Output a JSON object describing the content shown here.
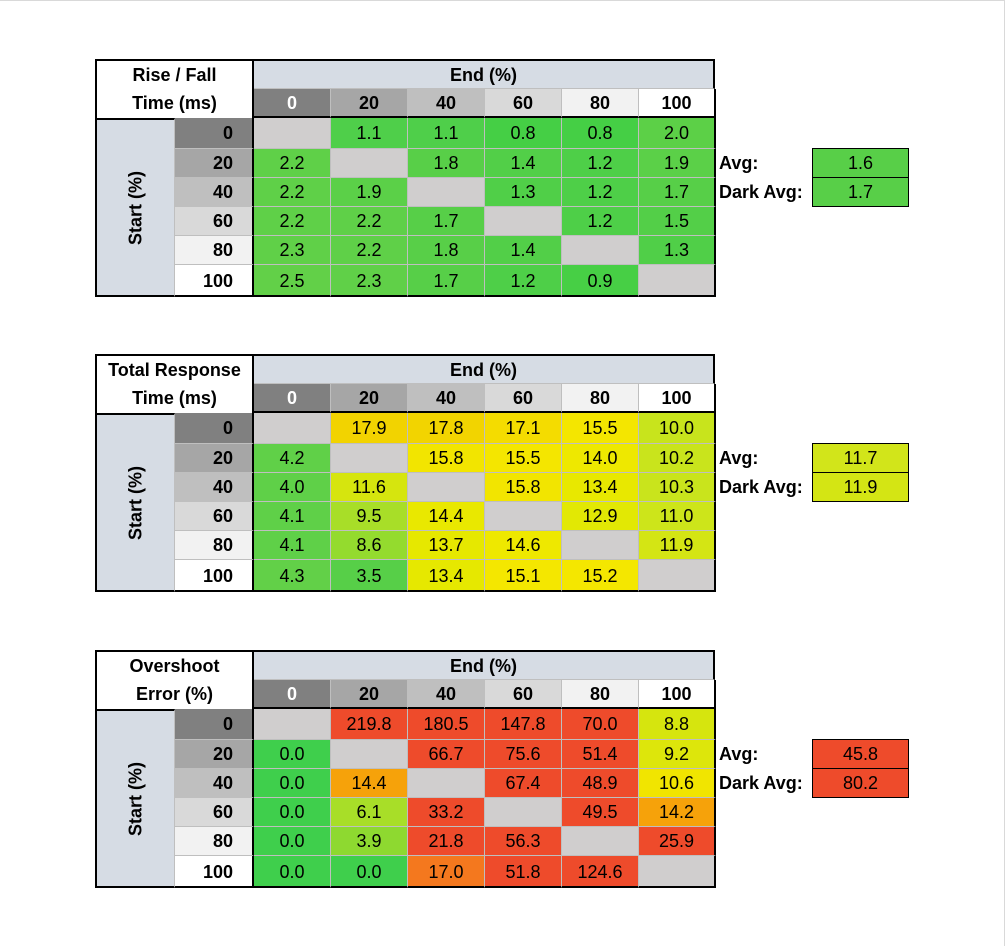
{
  "colors": {
    "header_band": "#d6dce4",
    "gray_cell": "#d0cece",
    "col_header_bg": [
      "#808080",
      "#a6a6a6",
      "#bfbfbf",
      "#d9d9d9",
      "#f2f2f2",
      "#ffffff"
    ],
    "row_header_bg": [
      "#808080",
      "#a6a6a6",
      "#bfbfbf",
      "#d9d9d9",
      "#f2f2f2",
      "#ffffff"
    ]
  },
  "chart_data": [
    {
      "type": "heatmap",
      "title_line1": "Rise / Fall",
      "title_line2": "Time (ms)",
      "xlabel": "End (%)",
      "ylabel": "Start (%)",
      "x_categories": [
        "0",
        "20",
        "40",
        "60",
        "80",
        "100"
      ],
      "y_categories": [
        "0",
        "20",
        "40",
        "60",
        "80",
        "100"
      ],
      "values": [
        [
          "",
          "1.1",
          "1.1",
          "0.8",
          "0.8",
          "2.0"
        ],
        [
          "2.2",
          "",
          "1.8",
          "1.4",
          "1.2",
          "1.9"
        ],
        [
          "2.2",
          "1.9",
          "",
          "1.3",
          "1.2",
          "1.7"
        ],
        [
          "2.2",
          "2.2",
          "1.7",
          "",
          "1.2",
          "1.5"
        ],
        [
          "2.3",
          "2.2",
          "1.8",
          "1.4",
          "",
          "1.3"
        ],
        [
          "2.5",
          "2.3",
          "1.7",
          "1.2",
          "0.9",
          ""
        ]
      ],
      "colors": [
        [
          "#d0cece",
          "#4fcf4a",
          "#4fcf4a",
          "#45cf45",
          "#45cf45",
          "#5cd047"
        ],
        [
          "#5fd048",
          "#d0cece",
          "#58cf48",
          "#52cf48",
          "#4ecf48",
          "#5bd048"
        ],
        [
          "#5fd048",
          "#5bd048",
          "#d0cece",
          "#50cf48",
          "#4ecf48",
          "#57cf48"
        ],
        [
          "#5fd048",
          "#5fd048",
          "#57cf48",
          "#d0cece",
          "#4ecf48",
          "#53cf48"
        ],
        [
          "#60d048",
          "#5fd048",
          "#58cf48",
          "#52cf48",
          "#d0cece",
          "#50cf48"
        ],
        [
          "#62d048",
          "#60d048",
          "#57cf48",
          "#4ecf48",
          "#47cf45",
          "#d0cece"
        ]
      ],
      "avg_label": "Avg:",
      "avg_value": "1.6",
      "avg_color": "#58cf48",
      "dark_avg_label": "Dark Avg:",
      "dark_avg_value": "1.7",
      "dark_avg_color": "#58cf48"
    },
    {
      "type": "heatmap",
      "title_line1": "Total Response",
      "title_line2": "Time (ms)",
      "xlabel": "End (%)",
      "ylabel": "Start (%)",
      "x_categories": [
        "0",
        "20",
        "40",
        "60",
        "80",
        "100"
      ],
      "y_categories": [
        "0",
        "20",
        "40",
        "60",
        "80",
        "100"
      ],
      "values": [
        [
          "",
          "17.9",
          "17.8",
          "17.1",
          "15.5",
          "10.0"
        ],
        [
          "4.2",
          "",
          "15.8",
          "15.5",
          "14.0",
          "10.2"
        ],
        [
          "4.0",
          "11.6",
          "",
          "15.8",
          "13.4",
          "10.3"
        ],
        [
          "4.1",
          "9.5",
          "14.4",
          "",
          "12.9",
          "11.0"
        ],
        [
          "4.1",
          "8.6",
          "13.7",
          "14.6",
          "",
          "11.9"
        ],
        [
          "4.3",
          "3.5",
          "13.4",
          "15.1",
          "15.2",
          ""
        ]
      ],
      "colors": [
        [
          "#d0cece",
          "#f2d300",
          "#f2d400",
          "#f4dc00",
          "#f4e600",
          "#c8e41c"
        ],
        [
          "#60d048",
          "#d0cece",
          "#f2e500",
          "#f4e600",
          "#eee800",
          "#c9e41c"
        ],
        [
          "#5fd048",
          "#d6e50e",
          "#d0cece",
          "#f2e500",
          "#e8e800",
          "#c9e41c"
        ],
        [
          "#5fd048",
          "#a8de28",
          "#e9e800",
          "#d0cece",
          "#e2e804",
          "#cde51a"
        ],
        [
          "#5fd048",
          "#94db2e",
          "#e6e800",
          "#eee800",
          "#d0cece",
          "#d4e514"
        ],
        [
          "#62d048",
          "#57cf48",
          "#e6e800",
          "#f4e700",
          "#f4e700",
          "#d0cece"
        ]
      ],
      "avg_label": "Avg:",
      "avg_value": "11.7",
      "avg_color": "#d2e51a",
      "dark_avg_label": "Dark Avg:",
      "dark_avg_value": "11.9",
      "dark_avg_color": "#d4e514"
    },
    {
      "type": "heatmap",
      "title_line1": "Overshoot",
      "title_line2": "Error (%)",
      "xlabel": "End (%)",
      "ylabel": "Start (%)",
      "x_categories": [
        "0",
        "20",
        "40",
        "60",
        "80",
        "100"
      ],
      "y_categories": [
        "0",
        "20",
        "40",
        "60",
        "80",
        "100"
      ],
      "values": [
        [
          "",
          "219.8",
          "180.5",
          "147.8",
          "70.0",
          "8.8"
        ],
        [
          "0.0",
          "",
          "66.7",
          "75.6",
          "51.4",
          "9.2"
        ],
        [
          "0.0",
          "14.4",
          "",
          "67.4",
          "48.9",
          "10.6"
        ],
        [
          "0.0",
          "6.1",
          "33.2",
          "",
          "49.5",
          "14.2"
        ],
        [
          "0.0",
          "3.9",
          "21.8",
          "56.3",
          "",
          "25.9"
        ],
        [
          "0.0",
          "0.0",
          "17.0",
          "51.8",
          "124.6",
          ""
        ]
      ],
      "colors": [
        [
          "#d0cece",
          "#ee4b2b",
          "#ee4b2b",
          "#ee4b2b",
          "#ee4b2b",
          "#d6e50e"
        ],
        [
          "#3fcf4c",
          "#d0cece",
          "#ee4b2b",
          "#ee4b2b",
          "#ee4b2b",
          "#dde60b"
        ],
        [
          "#3fcf4c",
          "#f6a20a",
          "#d0cece",
          "#ee4b2b",
          "#ee4b2b",
          "#f1e500"
        ],
        [
          "#3fcf4c",
          "#a8de28",
          "#ee4b2b",
          "#d0cece",
          "#ee4b2b",
          "#f6a20a"
        ],
        [
          "#3fcf4c",
          "#8ed930",
          "#ee4b2b",
          "#ee4b2b",
          "#d0cece",
          "#ee4b2b"
        ],
        [
          "#3fcf4c",
          "#3fcf4c",
          "#f4781e",
          "#ee4b2b",
          "#ee4b2b",
          "#d0cece"
        ]
      ],
      "avg_label": "Avg:",
      "avg_value": "45.8",
      "avg_color": "#ee4b2b",
      "dark_avg_label": "Dark Avg:",
      "dark_avg_value": "80.2",
      "dark_avg_color": "#ee4b2b"
    }
  ]
}
